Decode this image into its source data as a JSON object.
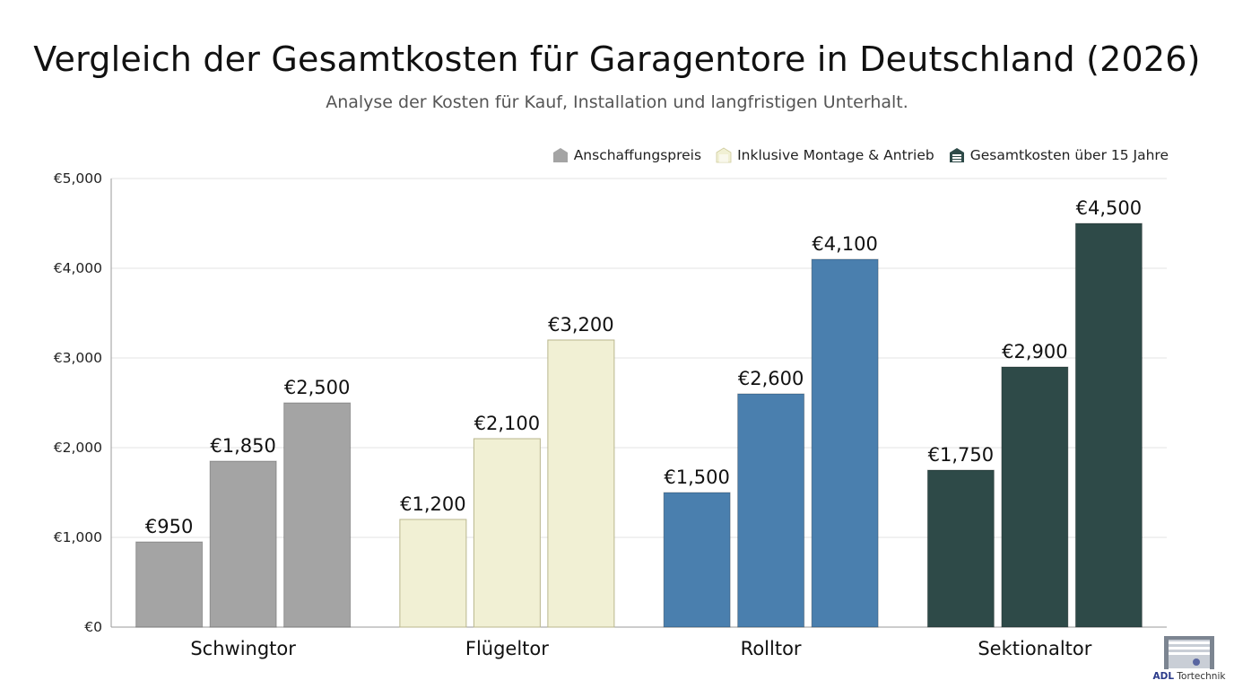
{
  "title": "Vergleich der Gesamtkosten für Garagentore in Deutschland (2026)",
  "subtitle": "Analyse der Kosten für Kauf, Installation und langfristigen Unterhalt.",
  "legend": {
    "items": [
      {
        "label": "Anschaffungspreis",
        "icon": "garage-door-icon"
      },
      {
        "label": "Inklusive Montage & Antrieb",
        "icon": "garage-door-icon"
      },
      {
        "label": "Gesamtkosten über 15 Jahre",
        "icon": "garage-door-icon"
      }
    ]
  },
  "logo": {
    "brand": "ADL",
    "name": "Tortechnik"
  },
  "chart_data": {
    "type": "bar",
    "title": "Vergleich der Gesamtkosten für Garagentore in Deutschland (2026)",
    "subtitle": "Analyse der Kosten für Kauf, Installation und langfristigen Unterhalt.",
    "xlabel": "",
    "ylabel": "",
    "ylim": [
      0,
      5000
    ],
    "yticks": [
      0,
      1000,
      2000,
      3000,
      4000,
      5000
    ],
    "ytick_labels": [
      "€0",
      "€1,000",
      "€2,000",
      "€3,000",
      "€4,000",
      "€5,000"
    ],
    "grid": true,
    "legend_position": "top-right",
    "categories": [
      "Schwingtor",
      "Flügeltor",
      "Rolltor",
      "Sektionaltor"
    ],
    "category_colors": [
      "#a4a4a4",
      "#f1f0d4",
      "#4a7fae",
      "#2e4a48"
    ],
    "series": [
      {
        "name": "Anschaffungspreis",
        "values": [
          950,
          1200,
          1500,
          1750
        ]
      },
      {
        "name": "Inklusive Montage & Antrieb",
        "values": [
          1850,
          2100,
          2600,
          2900
        ]
      },
      {
        "name": "Gesamtkosten über 15 Jahre",
        "values": [
          2500,
          3200,
          4100,
          4500
        ]
      }
    ],
    "data_labels": [
      [
        "€950",
        "€1,850",
        "€2,500"
      ],
      [
        "€1,200",
        "€2,100",
        "€3,200"
      ],
      [
        "€1,500",
        "€2,600",
        "€4,100"
      ],
      [
        "€1,750",
        "€2,900",
        "€4,500"
      ]
    ],
    "legend_colors": [
      "#a4a4a4",
      "#f1f0d4",
      "#2e4a48"
    ]
  }
}
